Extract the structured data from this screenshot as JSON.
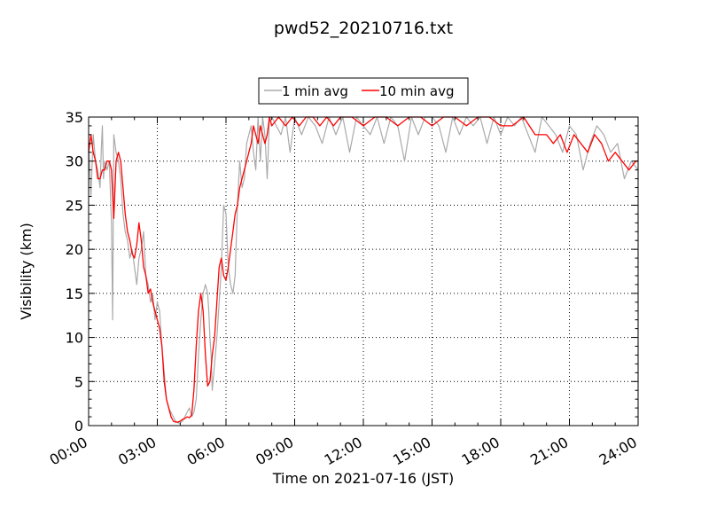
{
  "chart_data": {
    "type": "line",
    "title": "pwd52_20210716.txt",
    "xlabel": "Time on 2021-07-16 (JST)",
    "ylabel": "Visibility (km)",
    "xlim": [
      0,
      24
    ],
    "ylim": [
      0,
      35
    ],
    "x_ticks": [
      0,
      3,
      6,
      9,
      12,
      15,
      18,
      21,
      24
    ],
    "x_tick_labels": [
      "00:00",
      "03:00",
      "06:00",
      "09:00",
      "12:00",
      "15:00",
      "18:00",
      "21:00",
      "24:00"
    ],
    "y_ticks": [
      0,
      5,
      10,
      15,
      20,
      25,
      30,
      35
    ],
    "y_tick_labels": [
      "0",
      "5",
      "10",
      "15",
      "20",
      "25",
      "30",
      "35"
    ],
    "grid": true,
    "legend_position": "top-center",
    "series": [
      {
        "name": "1 min avg",
        "color": "#aaaaaa",
        "x": [
          0,
          0.1,
          0.2,
          0.3,
          0.4,
          0.5,
          0.55,
          0.6,
          0.65,
          0.7,
          0.8,
          0.9,
          1.0,
          1.05,
          1.1,
          1.2,
          1.3,
          1.4,
          1.5,
          1.6,
          1.7,
          1.8,
          1.9,
          2.0,
          2.1,
          2.2,
          2.3,
          2.4,
          2.5,
          2.6,
          2.7,
          2.8,
          2.9,
          3.0,
          3.1,
          3.2,
          3.3,
          3.4,
          3.5,
          3.6,
          3.7,
          3.8,
          3.9,
          4.0,
          4.1,
          4.2,
          4.3,
          4.4,
          4.5,
          4.6,
          4.7,
          4.8,
          4.9,
          5.0,
          5.1,
          5.2,
          5.25,
          5.3,
          5.35,
          5.4,
          5.5,
          5.6,
          5.7,
          5.8,
          5.9,
          6.0,
          6.1,
          6.2,
          6.3,
          6.4,
          6.5,
          6.6,
          6.7,
          6.8,
          6.9,
          7.0,
          7.1,
          7.2,
          7.3,
          7.4,
          7.5,
          7.6,
          7.7,
          7.8,
          7.9,
          8.0,
          8.2,
          8.4,
          8.6,
          8.8,
          9.0,
          9.3,
          9.6,
          9.9,
          10.2,
          10.5,
          10.8,
          11.1,
          11.4,
          11.7,
          12.0,
          12.3,
          12.6,
          12.9,
          13.2,
          13.5,
          13.8,
          14.1,
          14.4,
          14.7,
          15.0,
          15.3,
          15.6,
          15.9,
          16.2,
          16.5,
          16.8,
          17.1,
          17.4,
          17.7,
          18.0,
          18.3,
          18.6,
          18.9,
          19.2,
          19.5,
          19.8,
          20.1,
          20.4,
          20.7,
          21.0,
          21.3,
          21.6,
          21.9,
          22.2,
          22.5,
          22.8,
          23.1,
          23.4,
          23.7,
          24.0
        ],
        "values": [
          32,
          26,
          33,
          30,
          29,
          27,
          31,
          34,
          28,
          30,
          29,
          30,
          23,
          12,
          33,
          31,
          30,
          28,
          24,
          22,
          21,
          19,
          20,
          18,
          16,
          19,
          20,
          22,
          17,
          16,
          14,
          15,
          12,
          14,
          13,
          9,
          6,
          3,
          2,
          1.5,
          1,
          0.5,
          0.3,
          0.3,
          0.5,
          1,
          1.5,
          2,
          1,
          1.5,
          3,
          8,
          12,
          15,
          16,
          15,
          13,
          10,
          8,
          4,
          7,
          10,
          14,
          18,
          25,
          24,
          18,
          16,
          15,
          17,
          25,
          30,
          27,
          28,
          32,
          33,
          34,
          31,
          29,
          35,
          30,
          35,
          33,
          28,
          35,
          35,
          34,
          33,
          35,
          31,
          35,
          33,
          35,
          34,
          32,
          35,
          33,
          35,
          31,
          35,
          34,
          33,
          35,
          32,
          35,
          34,
          30,
          35,
          33,
          35,
          35,
          34,
          31,
          35,
          33,
          35,
          34,
          35,
          32,
          35,
          33,
          35,
          34,
          35,
          33,
          31,
          35,
          34,
          33,
          31,
          34,
          33,
          29,
          32,
          34,
          33,
          31,
          32,
          28,
          30,
          29
        ]
      },
      {
        "name": "10 min avg",
        "color": "#ff0000",
        "x": [
          0,
          0.1,
          0.2,
          0.3,
          0.4,
          0.5,
          0.6,
          0.7,
          0.8,
          0.9,
          1.0,
          1.1,
          1.2,
          1.3,
          1.4,
          1.5,
          1.6,
          1.7,
          1.8,
          1.9,
          2.0,
          2.1,
          2.2,
          2.3,
          2.4,
          2.5,
          2.6,
          2.7,
          2.8,
          2.9,
          3.0,
          3.1,
          3.2,
          3.3,
          3.4,
          3.5,
          3.6,
          3.7,
          3.8,
          3.9,
          4.0,
          4.1,
          4.2,
          4.3,
          4.4,
          4.5,
          4.6,
          4.7,
          4.8,
          4.9,
          5.0,
          5.1,
          5.2,
          5.3,
          5.4,
          5.5,
          5.6,
          5.7,
          5.8,
          5.9,
          6.0,
          6.1,
          6.2,
          6.3,
          6.4,
          6.5,
          6.6,
          6.7,
          6.8,
          6.9,
          7.0,
          7.1,
          7.2,
          7.3,
          7.4,
          7.5,
          7.6,
          7.7,
          7.8,
          7.9,
          8.0,
          8.3,
          8.6,
          8.9,
          9.2,
          9.5,
          9.8,
          10.1,
          10.4,
          10.7,
          11.0,
          11.5,
          12.0,
          12.5,
          13.0,
          13.5,
          14.0,
          14.5,
          15.0,
          15.5,
          16.0,
          16.5,
          17.0,
          17.5,
          18.0,
          18.5,
          19.0,
          19.5,
          20.0,
          20.3,
          20.6,
          20.9,
          21.2,
          21.5,
          21.8,
          22.1,
          22.4,
          22.7,
          23.0,
          23.3,
          23.6,
          23.9,
          24.0
        ],
        "values": [
          31,
          33,
          31,
          30,
          28,
          28,
          29,
          29,
          30,
          30,
          29,
          23.5,
          30,
          31,
          30,
          27,
          24,
          22,
          21,
          19.5,
          19,
          20.5,
          23,
          21,
          18,
          17,
          15,
          15.5,
          14,
          13,
          12,
          11,
          9,
          5,
          3,
          2,
          1,
          0.5,
          0.4,
          0.4,
          0.5,
          0.7,
          0.8,
          1,
          0.9,
          1.2,
          4,
          9,
          13,
          15,
          13,
          8,
          4.5,
          5,
          8,
          10,
          14,
          18,
          19,
          17,
          16.5,
          18,
          20,
          22,
          24,
          25,
          27,
          28,
          29,
          30,
          31,
          32,
          34,
          33,
          32,
          34,
          33,
          32,
          33,
          35,
          34,
          35,
          34,
          35,
          34,
          35,
          35,
          34,
          35,
          34,
          35,
          35,
          34,
          35,
          35,
          34,
          35,
          35,
          34,
          35,
          35,
          34,
          35,
          35,
          34,
          34,
          35,
          33,
          33,
          32,
          33,
          31,
          33,
          32,
          31,
          33,
          32,
          30,
          31,
          30,
          29,
          30,
          30
        ]
      }
    ]
  }
}
